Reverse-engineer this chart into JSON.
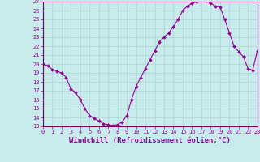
{
  "title": "",
  "xlabel": "Windchill (Refroidissement éolien,°C)",
  "ylabel": "",
  "background_color": "#c8ecec",
  "grid_color": "#aad4d4",
  "line_color": "#990099",
  "marker_color": "#990099",
  "xlim": [
    0,
    23
  ],
  "ylim": [
    13,
    27
  ],
  "yticks": [
    13,
    14,
    15,
    16,
    17,
    18,
    19,
    20,
    21,
    22,
    23,
    24,
    25,
    26,
    27
  ],
  "xticks": [
    0,
    1,
    2,
    3,
    4,
    5,
    6,
    7,
    8,
    9,
    10,
    11,
    12,
    13,
    14,
    15,
    16,
    17,
    18,
    19,
    20,
    21,
    22,
    23
  ],
  "x": [
    0,
    0.5,
    1,
    1.5,
    2,
    2.5,
    3,
    3.5,
    4,
    4.5,
    5,
    5.5,
    6,
    6.5,
    7,
    7.5,
    8,
    8.5,
    9,
    9.5,
    10,
    10.5,
    11,
    11.5,
    12,
    12.5,
    13,
    13.5,
    14,
    14.5,
    15,
    15.5,
    16,
    16.5,
    17,
    17.5,
    18,
    18.5,
    19,
    19.5,
    20,
    20.5,
    21,
    21.5,
    22,
    22.5,
    23
  ],
  "y": [
    20.0,
    19.8,
    19.4,
    19.2,
    19.0,
    18.5,
    17.2,
    16.8,
    16.0,
    15.0,
    14.2,
    13.9,
    13.6,
    13.3,
    13.2,
    13.1,
    13.2,
    13.5,
    14.2,
    16.0,
    17.5,
    18.5,
    19.5,
    20.5,
    21.5,
    22.5,
    23.0,
    23.5,
    24.2,
    25.0,
    26.0,
    26.5,
    26.8,
    27.0,
    27.2,
    27.1,
    26.8,
    26.5,
    26.4,
    25.0,
    23.5,
    22.0,
    21.4,
    20.8,
    19.5,
    19.3,
    21.5
  ],
  "border_color": "#660066",
  "xlabel_fontsize": 6.5,
  "tick_fontsize": 5.0
}
